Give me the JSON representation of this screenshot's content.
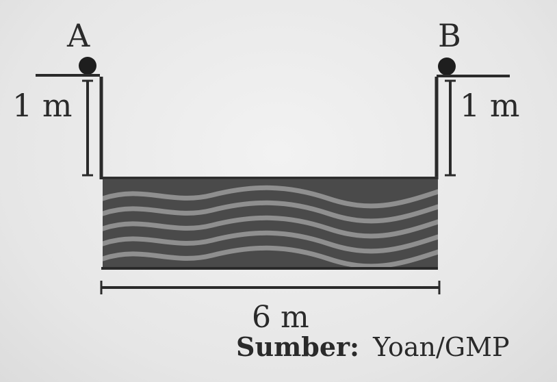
{
  "diagram": {
    "point_a_label": "A",
    "point_b_label": "B",
    "left_height_label": "1 m",
    "right_height_label": "1 m",
    "width_label": "6 m",
    "source_prefix": "Sumber:",
    "source_name": "Yoan/GMP"
  },
  "colors": {
    "ink": "#2a2a2a",
    "water_dark": "#4a4a4a",
    "water_wave": "#8f8f8f",
    "background": "#e9e9e9"
  }
}
